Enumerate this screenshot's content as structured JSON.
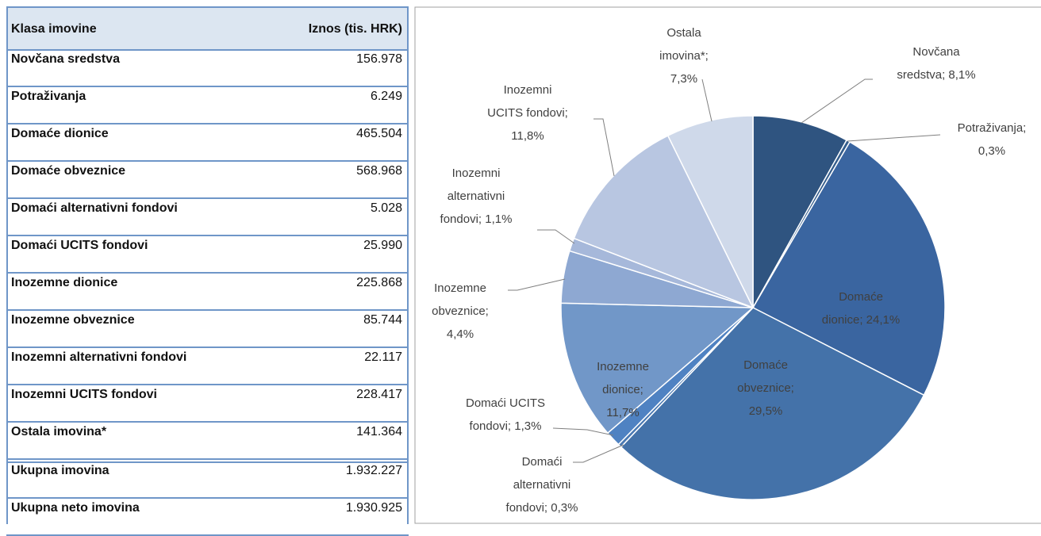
{
  "table": {
    "header": [
      "Klasa imovine",
      "Iznos (tis. HRK)"
    ],
    "rows": [
      [
        "Novčana sredstva",
        "156.978"
      ],
      [
        "Potraživanja",
        "6.249"
      ],
      [
        "Domaće dionice",
        "465.504"
      ],
      [
        "Domaće obveznice",
        "568.968"
      ],
      [
        "Domaći alternativni fondovi",
        "5.028"
      ],
      [
        "Domaći UCITS fondovi",
        "25.990"
      ],
      [
        "Inozemne dionice",
        "225.868"
      ],
      [
        "Inozemne obveznice",
        "85.744"
      ],
      [
        "Inozemni alternativni fondovi",
        "22.117"
      ],
      [
        "Inozemni UCITS fondovi",
        "228.417"
      ],
      [
        "Ostala imovina*",
        "141.364"
      ],
      [
        "Ukupna imovina",
        "1.932.227"
      ],
      [
        "Ukupna neto imovina",
        "1.930.925"
      ]
    ]
  },
  "chart_data": {
    "type": "pie",
    "values": [
      8.1,
      0.3,
      24.1,
      29.5,
      0.3,
      1.3,
      11.7,
      4.4,
      1.1,
      11.8,
      7.3
    ],
    "value_labels": [
      "Novčana sredstva; 8,1%",
      "Potraživanja; 0,3%",
      "Domaće dionice; 24,1%",
      "Domaće obveznice; 29,5%",
      "Domaći alternativni fondovi; 0,3%",
      "Domaći UCITS fondovi; 1,3%",
      "Inozemne dionice; 11,7%",
      "Inozemne obveznice; 4,4%",
      "Inozemni alternativni fondovi; 1,1%",
      "Inozemni UCITS fondovi; 11,8%",
      "Ostala imovina*; 7,3%"
    ],
    "colors": [
      "#2f5480",
      "#345d8c",
      "#3a65a0",
      "#4472a9",
      "#4a79b3",
      "#4f82c2",
      "#7197c8",
      "#8ea8d2",
      "#a6b8da",
      "#b8c6e1",
      "#cfd9ea"
    ]
  }
}
